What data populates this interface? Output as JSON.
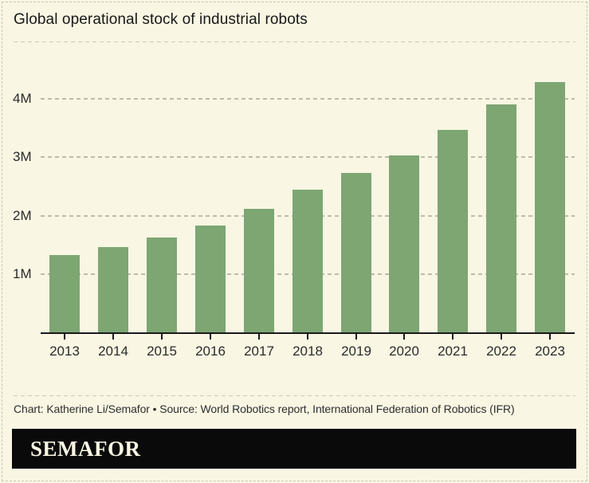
{
  "header": {
    "title": "Global operational stock of industrial robots"
  },
  "chart_data": {
    "type": "bar",
    "title": "Global operational stock of industrial robots",
    "categories": [
      "2013",
      "2014",
      "2015",
      "2016",
      "2017",
      "2018",
      "2019",
      "2020",
      "2021",
      "2022",
      "2023"
    ],
    "values": [
      1.33,
      1.47,
      1.63,
      1.83,
      2.12,
      2.44,
      2.73,
      3.03,
      3.47,
      3.9,
      4.28
    ],
    "unit": "millions of robots",
    "xlabel": "",
    "ylabel": "",
    "ylim": [
      0,
      4.5
    ],
    "y_ticks": [
      {
        "value": 1,
        "label": "1M"
      },
      {
        "value": 2,
        "label": "2M"
      },
      {
        "value": 3,
        "label": "3M"
      },
      {
        "value": 4,
        "label": "4M"
      }
    ],
    "grid": "horizontal-dashed",
    "legend": "none"
  },
  "colors": {
    "background": "#f9f6e3",
    "bar": "#7da673",
    "axis": "#1a1a1a",
    "gridline": "#bdbbad",
    "logo_bar_bg": "#0a0a0a",
    "logo_text": "#f9f6e3"
  },
  "footer": {
    "credit": "Chart: Katherine Li/Semafor • Source: World Robotics report, International Federation of Robotics (IFR)",
    "logo": "SEMAFOR"
  }
}
